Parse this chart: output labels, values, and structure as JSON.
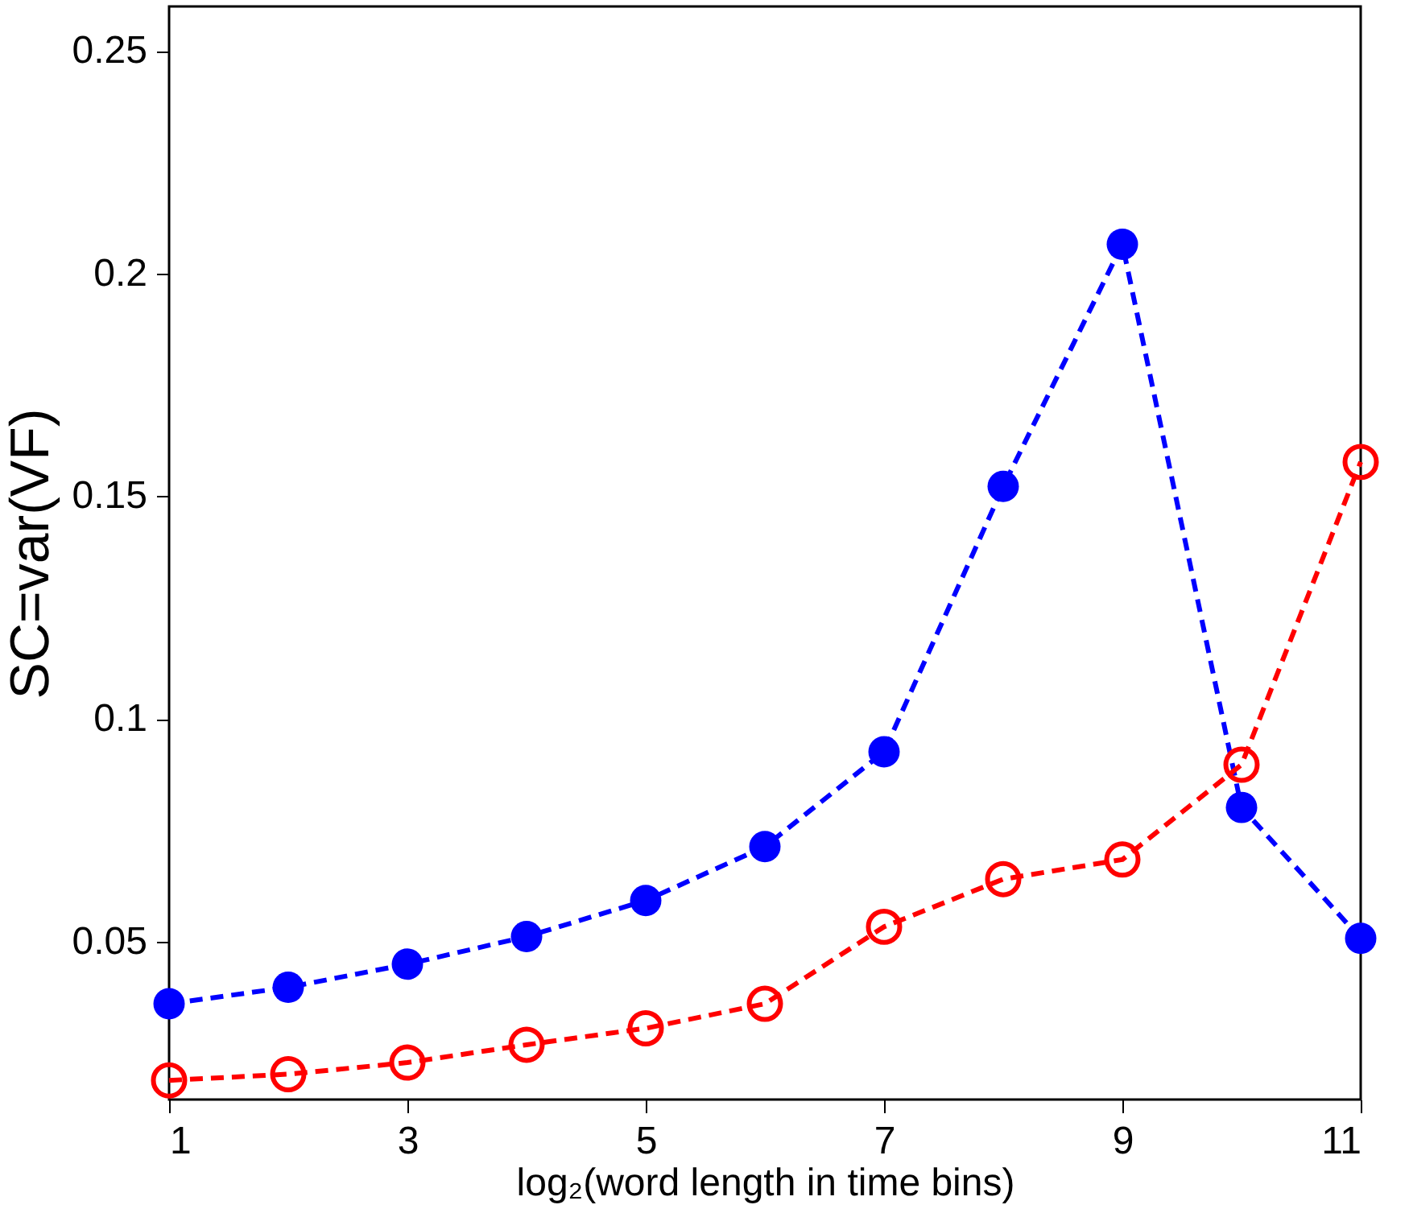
{
  "chart_data": {
    "type": "line",
    "xlabel": "log₂(word length in time bins)",
    "ylabel": "SC=var(VF)",
    "x": [
      1,
      2,
      3,
      4,
      5,
      6,
      7,
      8,
      9,
      10,
      11
    ],
    "series": [
      {
        "color": "#0000ff",
        "values": [
          0.036,
          0.0397,
          0.0449,
          0.0511,
          0.0592,
          0.0713,
          0.0926,
          0.1522,
          0.2066,
          0.0801,
          0.0507
        ]
      },
      {
        "color": "#ff0000",
        "values": [
          0.0188,
          0.0202,
          0.0228,
          0.0268,
          0.0305,
          0.036,
          0.0533,
          0.064,
          0.0684,
          0.0897,
          0.1577
        ]
      }
    ],
    "xlim": [
      1,
      11
    ],
    "xticks": [
      1,
      3,
      5,
      7,
      9,
      11
    ],
    "ylim": [
      0.0145,
      0.26
    ],
    "yticks": [
      0.05,
      0.1,
      0.15,
      0.2,
      0.25
    ],
    "grid": false,
    "marker": "circle",
    "line_style": "dashed"
  }
}
